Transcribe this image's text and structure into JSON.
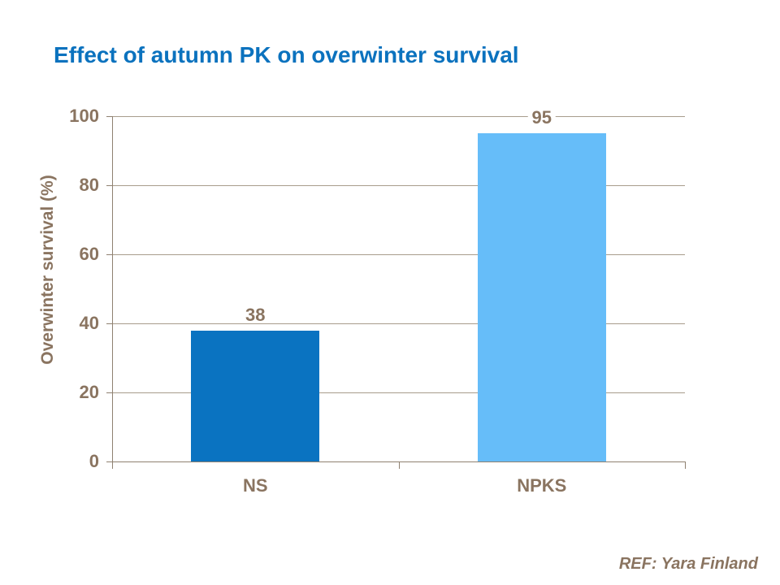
{
  "slide": {
    "title": "Effect of autumn PK on overwinter survival",
    "title_color": "#0b72be",
    "background_color": "#ffffff"
  },
  "chart_data": {
    "type": "bar",
    "title": "",
    "categories": [
      "NS",
      "NPKS"
    ],
    "values": [
      38,
      95
    ],
    "data_labels": [
      "38",
      "95"
    ],
    "bar_colors": [
      "#0a73c1",
      "#66bdf9"
    ],
    "xlabel": "",
    "ylabel": "Overwinter survival (%)",
    "ylim": [
      0,
      100
    ],
    "yticks": [
      0,
      20,
      40,
      60,
      80,
      100
    ],
    "ytick_labels": [
      "0",
      "20",
      "40",
      "60",
      "80",
      "100"
    ],
    "grid": "horizontal",
    "legend": "none",
    "text_color": "#8a7460",
    "grid_color": "#a89c8c",
    "axis_color": "#8f8171"
  },
  "footer": {
    "ref": "REF: Yara Finland"
  }
}
